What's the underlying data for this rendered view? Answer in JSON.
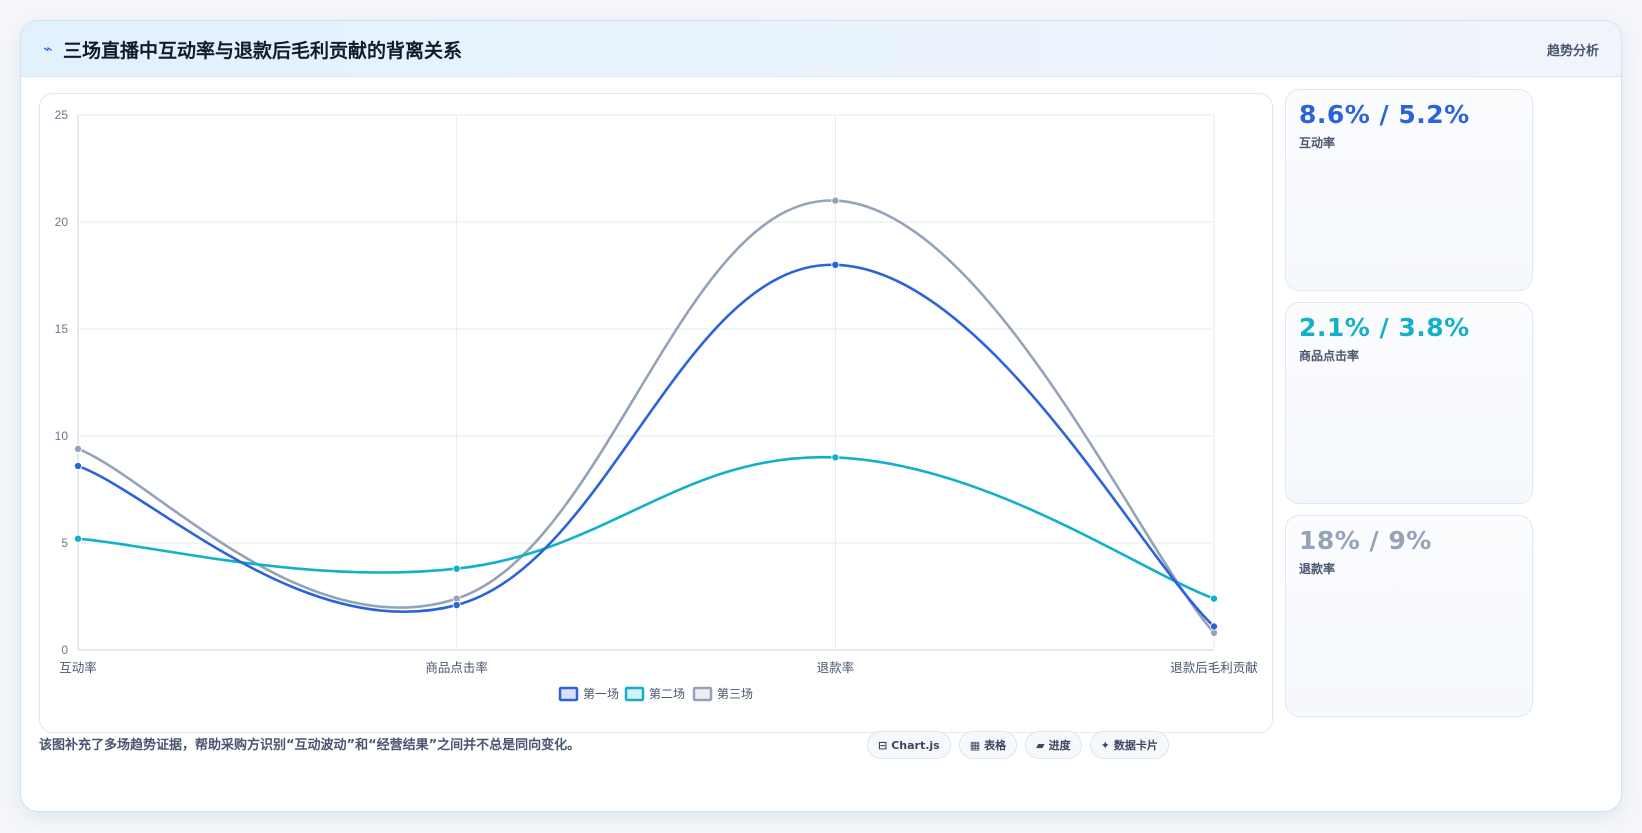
{
  "header": {
    "title": "三场直播中互动率与退款后毛利贡献的背离关系",
    "tag": "趋势分析",
    "bolt_icon": "⌁"
  },
  "chart_data": {
    "type": "line",
    "categories": [
      "互动率",
      "商品点击率",
      "退款率",
      "退款后毛利贡献"
    ],
    "series": [
      {
        "name": "第一场",
        "values": [
          8.6,
          2.1,
          18,
          1.1
        ],
        "color": "#2b63d9"
      },
      {
        "name": "第二场",
        "values": [
          5.2,
          3.8,
          9,
          2.4
        ],
        "color": "#12b0c9"
      },
      {
        "name": "第三场",
        "values": [
          9.4,
          2.4,
          21,
          0.8
        ],
        "color": "#94a3b8"
      }
    ],
    "ylim": [
      0,
      25
    ],
    "yticks": [
      0,
      5,
      10,
      15,
      20,
      25
    ],
    "grid": true,
    "legend": "bottom"
  },
  "stats": [
    {
      "value": "8.6% / 5.2%",
      "label": "互动率",
      "color": "#2b63d9"
    },
    {
      "value": "2.1% / 3.8%",
      "label": "商品点击率",
      "color": "#12b0c9"
    },
    {
      "value": "18% / 9%",
      "label": "退款率",
      "color": "#94a3b8"
    }
  ],
  "footer": {
    "note": "该图补充了多场趋势证据，帮助采购方识别“互动波动”和“经营结果”之间并不总是同向变化。",
    "pills": [
      {
        "icon": "⊟",
        "label": "Chart.js"
      },
      {
        "icon": "▦",
        "label": "表格"
      },
      {
        "icon": "▰",
        "label": "进度"
      },
      {
        "icon": "✦",
        "label": "数据卡片"
      }
    ]
  }
}
